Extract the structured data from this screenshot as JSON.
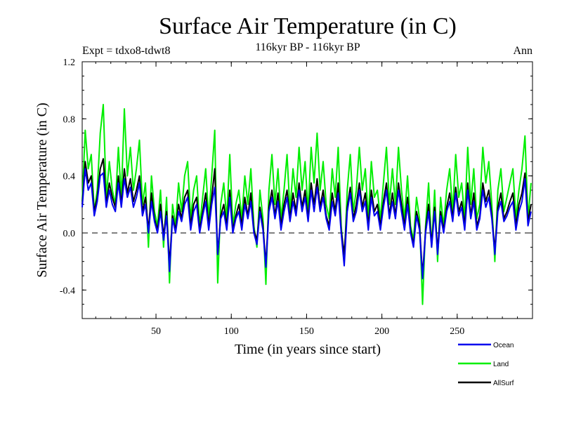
{
  "chart_data": {
    "type": "line",
    "title": "Surface Air Temperature (in C)",
    "subtitle": "116kyr BP - 116kyr BP",
    "left_note": "Expt = tdxo8-tdwt8",
    "right_note": "Ann",
    "xlabel": "Time (in years since start)",
    "ylabel": "Surface Air Temperature (in C)",
    "xlim": [
      1,
      300
    ],
    "ylim": [
      -0.6,
      1.2
    ],
    "xticks": [
      50,
      100,
      150,
      200,
      250
    ],
    "yticks": [
      -0.4,
      0.0,
      0.4,
      0.8,
      1.2
    ],
    "ytick_labels": [
      "-0.4",
      "0.0",
      "0.4",
      "0.8",
      "1.2"
    ],
    "zero_line": "dashed",
    "legend_placement": "bottom-right",
    "series": [
      {
        "name": "Land",
        "color": "#00ee00",
        "x": [
          1,
          3,
          5,
          7,
          9,
          11,
          13,
          15,
          17,
          19,
          21,
          23,
          25,
          27,
          29,
          31,
          33,
          35,
          37,
          39,
          41,
          43,
          45,
          47,
          49,
          51,
          53,
          55,
          57,
          59,
          61,
          63,
          65,
          67,
          69,
          71,
          73,
          75,
          77,
          79,
          81,
          83,
          85,
          87,
          89,
          91,
          93,
          95,
          97,
          99,
          101,
          103,
          105,
          107,
          109,
          111,
          113,
          115,
          117,
          119,
          121,
          123,
          125,
          127,
          129,
          131,
          133,
          135,
          137,
          139,
          141,
          143,
          145,
          147,
          149,
          151,
          153,
          155,
          157,
          159,
          161,
          163,
          165,
          167,
          169,
          171,
          173,
          175,
          177,
          179,
          181,
          183,
          185,
          187,
          189,
          191,
          193,
          195,
          197,
          199,
          201,
          203,
          205,
          207,
          209,
          211,
          213,
          215,
          217,
          219,
          221,
          223,
          225,
          227,
          229,
          231,
          233,
          235,
          237,
          239,
          241,
          243,
          245,
          247,
          249,
          251,
          253,
          255,
          257,
          259,
          261,
          263,
          265,
          267,
          269,
          271,
          273,
          275,
          277,
          279,
          281,
          283,
          285,
          287,
          289,
          291,
          293,
          295,
          297,
          299
        ],
        "values": [
          0.22,
          0.72,
          0.45,
          0.55,
          0.15,
          0.3,
          0.7,
          0.9,
          0.25,
          0.5,
          0.3,
          0.2,
          0.6,
          0.25,
          0.87,
          0.4,
          0.6,
          0.3,
          0.45,
          0.65,
          0.2,
          0.35,
          -0.1,
          0.4,
          0.15,
          0.05,
          0.3,
          -0.1,
          0.25,
          -0.35,
          0.2,
          0.05,
          0.35,
          0.15,
          0.4,
          0.5,
          0.1,
          0.3,
          0.4,
          0.05,
          0.25,
          0.45,
          0.1,
          0.4,
          0.72,
          -0.35,
          0.2,
          0.35,
          0.1,
          0.55,
          0.05,
          0.2,
          0.3,
          0.1,
          0.4,
          0.2,
          0.45,
          0.05,
          -0.1,
          0.3,
          0.1,
          -0.36,
          0.3,
          0.55,
          0.2,
          0.45,
          0.1,
          0.3,
          0.55,
          0.15,
          0.45,
          0.25,
          0.6,
          0.3,
          0.5,
          0.15,
          0.6,
          0.35,
          0.7,
          0.3,
          0.5,
          0.2,
          0.1,
          0.45,
          0.25,
          0.6,
          0.05,
          -0.2,
          0.3,
          0.55,
          0.15,
          0.3,
          0.6,
          0.3,
          0.45,
          0.1,
          0.5,
          0.25,
          0.3,
          0.1,
          0.35,
          0.6,
          0.2,
          0.45,
          0.2,
          0.6,
          0.3,
          0.1,
          0.4,
          0.05,
          -0.05,
          0.25,
          0.1,
          -0.5,
          0.05,
          0.35,
          -0.1,
          0.3,
          -0.2,
          0.25,
          0.05,
          0.3,
          0.45,
          0.15,
          0.55,
          0.25,
          0.35,
          0.1,
          0.6,
          0.2,
          0.45,
          0.1,
          0.2,
          0.6,
          0.35,
          0.5,
          0.2,
          -0.2,
          0.3,
          0.45,
          0.15,
          0.25,
          0.35,
          0.45,
          0.1,
          0.3,
          0.45,
          0.68,
          0.1,
          0.35
        ]
      },
      {
        "name": "AllSurf",
        "color": "#000000",
        "x": [
          1,
          3,
          5,
          7,
          9,
          11,
          13,
          15,
          17,
          19,
          21,
          23,
          25,
          27,
          29,
          31,
          33,
          35,
          37,
          39,
          41,
          43,
          45,
          47,
          49,
          51,
          53,
          55,
          57,
          59,
          61,
          63,
          65,
          67,
          69,
          71,
          73,
          75,
          77,
          79,
          81,
          83,
          85,
          87,
          89,
          91,
          93,
          95,
          97,
          99,
          101,
          103,
          105,
          107,
          109,
          111,
          113,
          115,
          117,
          119,
          121,
          123,
          125,
          127,
          129,
          131,
          133,
          135,
          137,
          139,
          141,
          143,
          145,
          147,
          149,
          151,
          153,
          155,
          157,
          159,
          161,
          163,
          165,
          167,
          169,
          171,
          173,
          175,
          177,
          179,
          181,
          183,
          185,
          187,
          189,
          191,
          193,
          195,
          197,
          199,
          201,
          203,
          205,
          207,
          209,
          211,
          213,
          215,
          217,
          219,
          221,
          223,
          225,
          227,
          229,
          231,
          233,
          235,
          237,
          239,
          241,
          243,
          245,
          247,
          249,
          251,
          253,
          255,
          257,
          259,
          261,
          263,
          265,
          267,
          269,
          271,
          273,
          275,
          277,
          279,
          281,
          283,
          285,
          287,
          289,
          291,
          293,
          295,
          297,
          299
        ],
        "values": [
          0.2,
          0.5,
          0.35,
          0.4,
          0.15,
          0.25,
          0.45,
          0.52,
          0.2,
          0.35,
          0.25,
          0.18,
          0.4,
          0.2,
          0.45,
          0.28,
          0.38,
          0.22,
          0.3,
          0.4,
          0.15,
          0.25,
          0.02,
          0.28,
          0.1,
          0.02,
          0.2,
          -0.02,
          0.15,
          -0.22,
          0.12,
          0.02,
          0.2,
          0.1,
          0.25,
          0.3,
          0.05,
          0.2,
          0.25,
          0.02,
          0.15,
          0.28,
          0.05,
          0.25,
          0.45,
          -0.15,
          0.12,
          0.2,
          0.05,
          0.3,
          0.02,
          0.12,
          0.2,
          0.05,
          0.25,
          0.12,
          0.28,
          0.02,
          -0.05,
          0.18,
          0.05,
          -0.22,
          0.18,
          0.3,
          0.12,
          0.28,
          0.05,
          0.2,
          0.3,
          0.1,
          0.28,
          0.15,
          0.35,
          0.18,
          0.3,
          0.1,
          0.35,
          0.2,
          0.38,
          0.18,
          0.3,
          0.12,
          0.05,
          0.28,
          0.15,
          0.35,
          0.02,
          -0.15,
          0.18,
          0.32,
          0.1,
          0.2,
          0.35,
          0.18,
          0.28,
          0.05,
          0.3,
          0.15,
          0.2,
          0.05,
          0.22,
          0.35,
          0.12,
          0.28,
          0.12,
          0.35,
          0.2,
          0.05,
          0.25,
          0.02,
          -0.08,
          0.15,
          0.05,
          -0.3,
          0.02,
          0.2,
          -0.08,
          0.18,
          -0.12,
          0.15,
          0.02,
          0.18,
          0.28,
          0.1,
          0.32,
          0.15,
          0.22,
          0.05,
          0.35,
          0.12,
          0.28,
          0.05,
          0.12,
          0.35,
          0.22,
          0.3,
          0.12,
          -0.12,
          0.18,
          0.28,
          0.1,
          0.15,
          0.22,
          0.28,
          0.05,
          0.2,
          0.28,
          0.42,
          0.08,
          0.2
        ]
      },
      {
        "name": "Ocean",
        "color": "#0000ee",
        "x": [
          1,
          3,
          5,
          7,
          9,
          11,
          13,
          15,
          17,
          19,
          21,
          23,
          25,
          27,
          29,
          31,
          33,
          35,
          37,
          39,
          41,
          43,
          45,
          47,
          49,
          51,
          53,
          55,
          57,
          59,
          61,
          63,
          65,
          67,
          69,
          71,
          73,
          75,
          77,
          79,
          81,
          83,
          85,
          87,
          89,
          91,
          93,
          95,
          97,
          99,
          101,
          103,
          105,
          107,
          109,
          111,
          113,
          115,
          117,
          119,
          121,
          123,
          125,
          127,
          129,
          131,
          133,
          135,
          137,
          139,
          141,
          143,
          145,
          147,
          149,
          151,
          153,
          155,
          157,
          159,
          161,
          163,
          165,
          167,
          169,
          171,
          173,
          175,
          177,
          179,
          181,
          183,
          185,
          187,
          189,
          191,
          193,
          195,
          197,
          199,
          201,
          203,
          205,
          207,
          209,
          211,
          213,
          215,
          217,
          219,
          221,
          223,
          225,
          227,
          229,
          231,
          233,
          235,
          237,
          239,
          241,
          243,
          245,
          247,
          249,
          251,
          253,
          255,
          257,
          259,
          261,
          263,
          265,
          267,
          269,
          271,
          273,
          275,
          277,
          279,
          281,
          283,
          285,
          287,
          289,
          291,
          293,
          295,
          297,
          299
        ],
        "values": [
          0.18,
          0.45,
          0.3,
          0.35,
          0.12,
          0.22,
          0.4,
          0.42,
          0.18,
          0.3,
          0.2,
          0.15,
          0.35,
          0.18,
          0.38,
          0.25,
          0.32,
          0.18,
          0.25,
          0.35,
          0.12,
          0.2,
          0.0,
          0.22,
          0.08,
          0.0,
          0.15,
          -0.05,
          0.12,
          -0.27,
          0.1,
          0.0,
          0.15,
          0.08,
          0.2,
          0.25,
          0.02,
          0.15,
          0.2,
          0.0,
          0.12,
          0.22,
          0.02,
          0.2,
          0.32,
          -0.15,
          0.1,
          0.15,
          0.02,
          0.25,
          0.0,
          0.1,
          0.15,
          0.02,
          0.2,
          0.1,
          0.22,
          0.0,
          -0.08,
          0.15,
          0.02,
          -0.24,
          0.15,
          0.25,
          0.1,
          0.22,
          0.02,
          0.15,
          0.25,
          0.08,
          0.22,
          0.12,
          0.3,
          0.15,
          0.25,
          0.08,
          0.3,
          0.15,
          0.32,
          0.15,
          0.25,
          0.1,
          0.02,
          0.22,
          0.12,
          0.28,
          0.0,
          -0.23,
          0.15,
          0.28,
          0.08,
          0.15,
          0.3,
          0.15,
          0.22,
          0.02,
          0.25,
          0.12,
          0.15,
          0.02,
          0.18,
          0.3,
          0.1,
          0.22,
          0.1,
          0.3,
          0.15,
          0.02,
          0.2,
          0.0,
          -0.1,
          0.12,
          0.02,
          -0.32,
          0.0,
          0.15,
          -0.1,
          0.15,
          -0.15,
          0.12,
          0.0,
          0.15,
          0.22,
          0.08,
          0.28,
          0.12,
          0.18,
          0.02,
          0.3,
          0.1,
          0.22,
          0.02,
          0.1,
          0.3,
          0.18,
          0.25,
          0.1,
          -0.15,
          0.15,
          0.22,
          0.08,
          0.12,
          0.18,
          0.22,
          0.02,
          0.15,
          0.22,
          0.38,
          0.05,
          0.15
        ]
      }
    ],
    "legend_order": [
      "Ocean",
      "Land",
      "AllSurf"
    ]
  }
}
